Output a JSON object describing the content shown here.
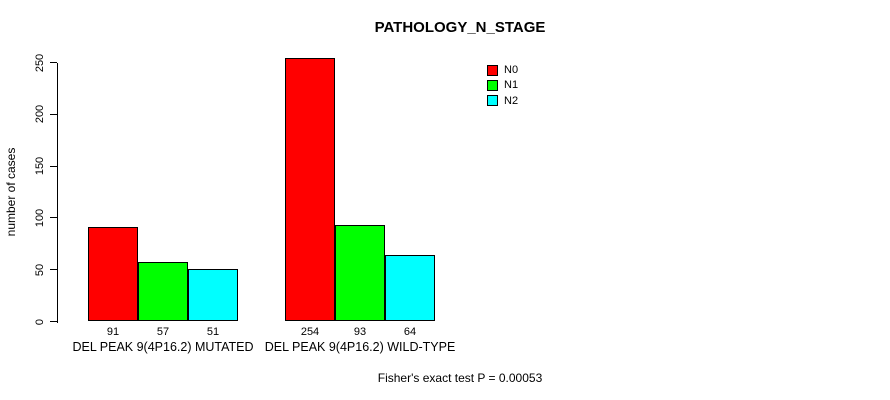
{
  "chart_data": {
    "type": "bar",
    "title": "PATHOLOGY_N_STAGE",
    "ylabel": "number of cases",
    "xlabel": "",
    "categories": [
      "DEL PEAK 9(4P16.2) MUTATED",
      "DEL PEAK 9(4P16.2) WILD-TYPE"
    ],
    "series": [
      {
        "name": "N0",
        "color": "#ff0000",
        "values": [
          91,
          254
        ]
      },
      {
        "name": "N1",
        "color": "#00ff00",
        "values": [
          57,
          93
        ]
      },
      {
        "name": "N2",
        "color": "#00ffff",
        "values": [
          51,
          64
        ]
      }
    ],
    "value_labels": [
      [
        91,
        57,
        51
      ],
      [
        254,
        93,
        64
      ]
    ],
    "yticks": [
      0,
      50,
      100,
      150,
      200,
      250
    ],
    "ylim": [
      0,
      250
    ],
    "grid": false,
    "legend_position": "top-right",
    "annotation": "Fisher's exact test P = 0.00053"
  }
}
